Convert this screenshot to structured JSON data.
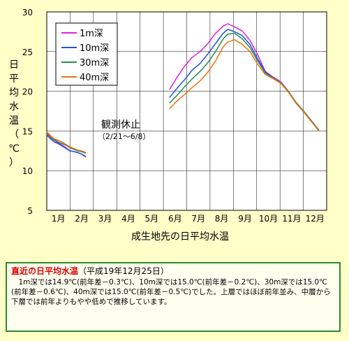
{
  "chart_data": {
    "type": "line",
    "ylabel": "日平均水温（℃）",
    "xlabel": "成生地先の日平均水温",
    "ylim": [
      5,
      30
    ],
    "yticks": [
      5,
      10,
      15,
      20,
      25,
      30
    ],
    "categories": [
      "1月",
      "2月",
      "3月",
      "4月",
      "5月",
      "6月",
      "7月",
      "8月",
      "9月",
      "10月",
      "11月",
      "12月"
    ],
    "grid": true,
    "legend_position": "top-left",
    "annotation": {
      "main": "観測休止",
      "sub": "（2/21～6/8）"
    },
    "series": [
      {
        "name": "1m深",
        "color": "#e020e0",
        "segments": [
          [
            [
              0,
              14.8
            ],
            [
              5,
              14.2
            ],
            [
              10,
              13.8
            ],
            [
              15,
              13.5
            ],
            [
              20,
              13.2
            ],
            [
              25,
              12.9
            ],
            [
              30,
              12.5
            ],
            [
              35,
              12.4
            ],
            [
              40,
              12.3
            ],
            [
              45,
              12.1
            ],
            [
              51,
              11.7
            ]
          ],
          [
            [
              160,
              20.2
            ],
            [
              170,
              21.8
            ],
            [
              180,
              23.2
            ],
            [
              190,
              24.3
            ],
            [
              200,
              25.0
            ],
            [
              210,
              26.0
            ],
            [
              220,
              27.3
            ],
            [
              230,
              28.2
            ],
            [
              236,
              28.5
            ],
            [
              245,
              28.1
            ],
            [
              255,
              27.6
            ],
            [
              265,
              26.4
            ],
            [
              275,
              24.6
            ],
            [
              285,
              22.5
            ],
            [
              295,
              21.8
            ],
            [
              305,
              21.2
            ],
            [
              315,
              20.0
            ],
            [
              325,
              18.6
            ],
            [
              335,
              17.5
            ],
            [
              345,
              16.3
            ],
            [
              355,
              15.1
            ]
          ]
        ]
      },
      {
        "name": "10m深",
        "color": "#2050e0",
        "segments": [
          [
            [
              0,
              14.5
            ],
            [
              5,
              14.0
            ],
            [
              10,
              13.6
            ],
            [
              15,
              13.4
            ],
            [
              20,
              13.1
            ],
            [
              25,
              12.8
            ],
            [
              30,
              12.5
            ],
            [
              35,
              12.4
            ],
            [
              40,
              12.3
            ],
            [
              45,
              12.1
            ],
            [
              51,
              11.8
            ]
          ],
          [
            [
              160,
              19.2
            ],
            [
              170,
              20.4
            ],
            [
              180,
              21.5
            ],
            [
              190,
              22.7
            ],
            [
              200,
              23.5
            ],
            [
              210,
              24.7
            ],
            [
              220,
              26.0
            ],
            [
              230,
              27.3
            ],
            [
              236,
              27.8
            ],
            [
              245,
              27.5
            ],
            [
              255,
              27.0
            ],
            [
              265,
              25.9
            ],
            [
              275,
              24.1
            ],
            [
              285,
              22.4
            ],
            [
              295,
              21.7
            ],
            [
              305,
              21.1
            ],
            [
              315,
              19.9
            ],
            [
              325,
              18.5
            ],
            [
              335,
              17.4
            ],
            [
              345,
              16.2
            ],
            [
              355,
              15.0
            ]
          ]
        ]
      },
      {
        "name": "30m深",
        "color": "#209050",
        "segments": [
          [
            [
              0,
              14.6
            ],
            [
              5,
              14.1
            ],
            [
              10,
              13.9
            ],
            [
              15,
              13.6
            ],
            [
              20,
              13.4
            ],
            [
              25,
              13.2
            ],
            [
              30,
              12.9
            ],
            [
              35,
              12.7
            ],
            [
              40,
              12.5
            ],
            [
              45,
              12.4
            ],
            [
              51,
              12.2
            ]
          ],
          [
            [
              160,
              18.5
            ],
            [
              170,
              19.5
            ],
            [
              180,
              20.6
            ],
            [
              190,
              21.6
            ],
            [
              200,
              22.5
            ],
            [
              210,
              23.6
            ],
            [
              220,
              25.0
            ],
            [
              230,
              26.6
            ],
            [
              236,
              27.2
            ],
            [
              245,
              27.3
            ],
            [
              255,
              26.6
            ],
            [
              265,
              25.5
            ],
            [
              275,
              23.8
            ],
            [
              285,
              22.3
            ],
            [
              295,
              21.7
            ],
            [
              305,
              21.1
            ],
            [
              315,
              20.0
            ],
            [
              325,
              18.6
            ],
            [
              335,
              17.5
            ],
            [
              345,
              16.3
            ],
            [
              355,
              15.1
            ]
          ]
        ]
      },
      {
        "name": "40m深",
        "color": "#f07010",
        "segments": [
          [
            [
              0,
              14.9
            ],
            [
              5,
              14.4
            ],
            [
              10,
              14.0
            ],
            [
              15,
              13.8
            ],
            [
              20,
              13.6
            ],
            [
              25,
              13.3
            ],
            [
              30,
              13.0
            ],
            [
              35,
              12.8
            ],
            [
              40,
              12.6
            ],
            [
              45,
              12.5
            ],
            [
              51,
              12.3
            ]
          ],
          [
            [
              160,
              17.8
            ],
            [
              170,
              18.8
            ],
            [
              180,
              19.6
            ],
            [
              190,
              20.5
            ],
            [
              200,
              21.3
            ],
            [
              210,
              22.4
            ],
            [
              220,
              23.8
            ],
            [
              230,
              25.6
            ],
            [
              236,
              26.2
            ],
            [
              245,
              26.5
            ],
            [
              255,
              25.9
            ],
            [
              265,
              25.0
            ],
            [
              275,
              23.4
            ],
            [
              285,
              22.1
            ],
            [
              295,
              21.6
            ],
            [
              305,
              21.0
            ],
            [
              315,
              19.9
            ],
            [
              325,
              18.5
            ],
            [
              335,
              17.4
            ],
            [
              345,
              16.2
            ],
            [
              355,
              15.0
            ]
          ]
        ]
      }
    ]
  },
  "info": {
    "title": "直近の日平均水温",
    "date": "（平成19年12月25日）",
    "body": "1m深では14.9℃(前年差－0.3℃)、10m深では15.0℃(前年差－0.2℃)、30m深では15.0℃(前年差－0.6℃)、40m深では15.0℃(前年差－0.5℃)でした。上層ではほぼ前年並み、中層から下層では前年よりもやや低めで推移しています。"
  }
}
